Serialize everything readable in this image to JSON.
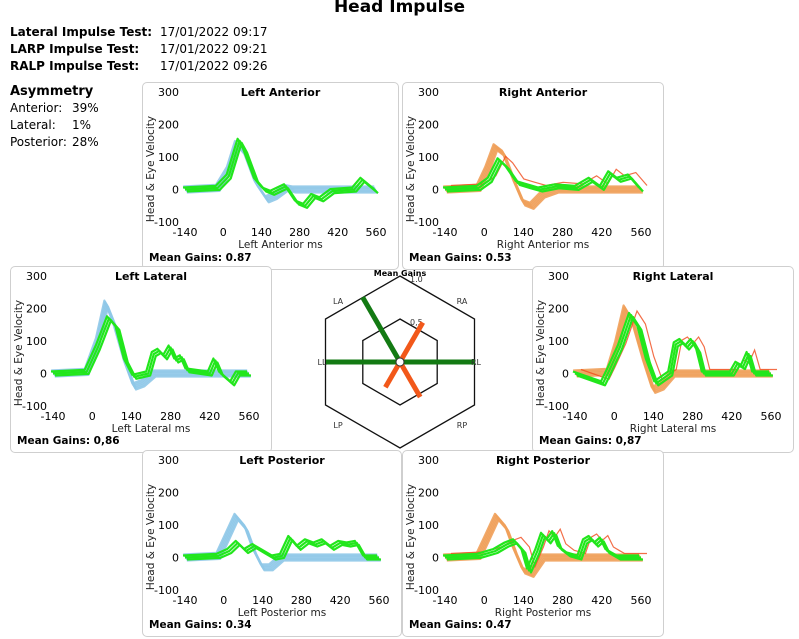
{
  "header": {
    "title": "Head Impulse",
    "tests": [
      {
        "label": "Lateral Impulse Test:",
        "datetime": "17/01/2022 09:17"
      },
      {
        "label": "LARP Impulse Test:",
        "datetime": "17/01/2022 09:21"
      },
      {
        "label": "RALP Impulse Test:",
        "datetime": "17/01/2022 09:26"
      }
    ]
  },
  "asymmetry": {
    "title": "Asymmetry",
    "items": [
      {
        "label": "Anterior:",
        "value": "39%"
      },
      {
        "label": "Lateral:",
        "value": "1%"
      },
      {
        "label": "Posterior:",
        "value": "28%"
      }
    ]
  },
  "colors": {
    "left_head": "#8fc8e8",
    "right_head": "#f0a05a",
    "eye": "#22e61c",
    "eye_saccade_right": "#f04a1a",
    "radar_green": "#137a13",
    "radar_orange": "#f2581a"
  },
  "chart_data": [
    {
      "type": "line",
      "id": "left_anterior",
      "title": "Left Anterior",
      "xlabel": "Left Anterior ms",
      "ylabel": "Head & Eye Velocity",
      "xticks": [
        -140,
        0,
        140,
        280,
        420,
        560
      ],
      "yticks": [
        300,
        200,
        100,
        0,
        -100
      ],
      "xlim": [
        -140,
        560
      ],
      "ylim": [
        -100,
        300
      ],
      "mean_gain_label": "Mean Gains: 0.87",
      "mean_gain": 0.87,
      "head_color": "#8fc8e8",
      "series": [
        {
          "name": "head",
          "x": [
            -140,
            -20,
            20,
            50,
            80,
            120,
            160,
            190,
            230,
            260,
            560
          ],
          "y": [
            0,
            5,
            60,
            140,
            110,
            20,
            -30,
            -20,
            5,
            0,
            0
          ]
        },
        {
          "name": "eye",
          "x": [
            -140,
            -20,
            20,
            60,
            80,
            120,
            150,
            180,
            230,
            270,
            300,
            330,
            360,
            400,
            480,
            510,
            560
          ],
          "y": [
            0,
            5,
            40,
            150,
            120,
            30,
            0,
            -10,
            10,
            -40,
            -50,
            -20,
            -30,
            -5,
            0,
            30,
            -5
          ]
        }
      ]
    },
    {
      "type": "line",
      "id": "right_anterior",
      "title": "Right Anterior",
      "xlabel": "Right Anterior ms",
      "ylabel": "Head & Eye Velocity",
      "xticks": [
        -140,
        0,
        140,
        280,
        420,
        560
      ],
      "yticks": [
        300,
        200,
        100,
        0,
        -100
      ],
      "xlim": [
        -140,
        560
      ],
      "ylim": [
        -100,
        300
      ],
      "mean_gain_label": "Mean Gains: 0.53",
      "mean_gain": 0.53,
      "head_color": "#f0a05a",
      "series": [
        {
          "name": "head",
          "x": [
            -140,
            -20,
            10,
            40,
            70,
            110,
            140,
            170,
            210,
            260,
            560
          ],
          "y": [
            0,
            5,
            60,
            130,
            110,
            20,
            -40,
            -50,
            -15,
            0,
            0
          ]
        },
        {
          "name": "eye",
          "x": [
            -140,
            -20,
            20,
            55,
            80,
            120,
            160,
            200,
            260,
            330,
            380,
            420,
            450,
            480,
            520,
            560
          ],
          "y": [
            0,
            5,
            30,
            90,
            70,
            20,
            10,
            0,
            10,
            5,
            30,
            5,
            50,
            30,
            40,
            0
          ]
        }
      ]
    },
    {
      "type": "line",
      "id": "left_lateral",
      "title": "Left Lateral",
      "xlabel": "Left Lateral ms",
      "ylabel": "Head & Eye Velocity",
      "xticks": [
        -140,
        0,
        140,
        280,
        420,
        560
      ],
      "yticks": [
        300,
        200,
        100,
        0,
        -100
      ],
      "xlim": [
        -140,
        560
      ],
      "ylim": [
        -100,
        300
      ],
      "mean_gain_label": "Mean Gains: 0,86",
      "mean_gain": 0.86,
      "head_color": "#8fc8e8",
      "series": [
        {
          "name": "head",
          "x": [
            -140,
            -20,
            20,
            50,
            80,
            120,
            150,
            180,
            220,
            560
          ],
          "y": [
            0,
            5,
            100,
            215,
            150,
            30,
            -40,
            -30,
            0,
            0
          ]
        },
        {
          "name": "eye",
          "x": [
            -140,
            -20,
            20,
            60,
            90,
            120,
            150,
            200,
            220,
            240,
            260,
            280,
            300,
            320,
            340,
            420,
            440,
            460,
            500,
            520,
            560
          ],
          "y": [
            0,
            5,
            80,
            170,
            140,
            40,
            -10,
            0,
            60,
            70,
            50,
            80,
            40,
            50,
            10,
            0,
            40,
            0,
            -30,
            0,
            0
          ]
        }
      ]
    },
    {
      "type": "line",
      "id": "right_lateral",
      "title": "Right Lateral",
      "xlabel": "Right Lateral ms",
      "ylabel": "Head & Eye Velocity",
      "xticks": [
        -140,
        0,
        140,
        280,
        420,
        560
      ],
      "yticks": [
        300,
        200,
        100,
        0,
        -100
      ],
      "xlim": [
        -140,
        560
      ],
      "ylim": [
        -100,
        300
      ],
      "mean_gain_label": "Mean Gains: 0,87",
      "mean_gain": 0.87,
      "head_color": "#f0a05a",
      "series": [
        {
          "name": "head",
          "x": [
            -140,
            -20,
            10,
            40,
            70,
            110,
            140,
            170,
            210,
            560
          ],
          "y": [
            0,
            5,
            90,
            200,
            150,
            30,
            -50,
            -40,
            0,
            0
          ]
        },
        {
          "name": "eye",
          "x": [
            -140,
            -40,
            -20,
            20,
            60,
            90,
            120,
            150,
            200,
            220,
            240,
            260,
            280,
            300,
            320,
            420,
            440,
            460,
            480,
            500,
            560
          ],
          "y": [
            0,
            -30,
            5,
            80,
            180,
            140,
            40,
            -30,
            0,
            90,
            100,
            80,
            100,
            70,
            0,
            0,
            30,
            20,
            60,
            0,
            0
          ]
        }
      ]
    },
    {
      "type": "line",
      "id": "left_posterior",
      "title": "Left Posterior",
      "xlabel": "Left Posterior ms",
      "ylabel": "Head & Eye Velocity",
      "xticks": [
        -140,
        0,
        140,
        280,
        420,
        560
      ],
      "yticks": [
        300,
        200,
        100,
        0,
        -100
      ],
      "xlim": [
        -140,
        560
      ],
      "ylim": [
        -100,
        300
      ],
      "mean_gain_label": "Mean Gains: 0.34",
      "mean_gain": 0.34,
      "head_color": "#8fc8e8",
      "series": [
        {
          "name": "head",
          "x": [
            -140,
            -20,
            10,
            45,
            80,
            110,
            140,
            170,
            210,
            560
          ],
          "y": [
            0,
            5,
            60,
            125,
            90,
            20,
            -30,
            -30,
            0,
            0
          ]
        },
        {
          "name": "eye",
          "x": [
            -140,
            -20,
            20,
            50,
            80,
            110,
            140,
            180,
            210,
            240,
            270,
            300,
            330,
            360,
            390,
            420,
            450,
            480,
            510,
            560
          ],
          "y": [
            0,
            5,
            20,
            45,
            20,
            35,
            20,
            0,
            5,
            60,
            30,
            50,
            40,
            50,
            30,
            45,
            40,
            45,
            0,
            0
          ]
        }
      ]
    },
    {
      "type": "line",
      "id": "right_posterior",
      "title": "Right Posterior",
      "xlabel": "Right Posterior ms",
      "ylabel": "Head & Eye Velocity",
      "xticks": [
        -140,
        0,
        140,
        280,
        420,
        560
      ],
      "yticks": [
        300,
        200,
        100,
        0,
        -100
      ],
      "xlim": [
        -140,
        560
      ],
      "ylim": [
        -100,
        300
      ],
      "mean_gain_label": "Mean Gains: 0.47",
      "mean_gain": 0.47,
      "head_color": "#f0a05a",
      "series": [
        {
          "name": "head",
          "x": [
            -140,
            -20,
            10,
            45,
            80,
            110,
            140,
            170,
            210,
            560
          ],
          "y": [
            0,
            5,
            60,
            125,
            90,
            20,
            -40,
            -50,
            0,
            0
          ]
        },
        {
          "name": "eye",
          "x": [
            -140,
            -20,
            40,
            80,
            110,
            140,
            160,
            190,
            210,
            230,
            250,
            270,
            300,
            340,
            360,
            380,
            400,
            420,
            440,
            460,
            480,
            560
          ],
          "y": [
            0,
            5,
            20,
            40,
            50,
            20,
            -40,
            20,
            70,
            50,
            75,
            30,
            10,
            0,
            50,
            60,
            40,
            55,
            20,
            10,
            0,
            0
          ]
        }
      ]
    },
    {
      "type": "radar",
      "id": "mean_gains",
      "title": "Mean Gains",
      "axes": [
        "LA",
        "RA",
        "RL",
        "RP",
        "LP",
        "LL"
      ],
      "rings": [
        {
          "value": 0.5,
          "label": "0,5"
        },
        {
          "value": 1.0,
          "label": "1.0"
        }
      ],
      "values": {
        "LA": 0.87,
        "RA": 0.53,
        "RL": 0.87,
        "RP": 0.47,
        "LP": 0.34,
        "LL": 0.86
      },
      "colors": {
        "LA": "#137a13",
        "RA": "#f2581a",
        "RL": "#137a13",
        "RP": "#f2581a",
        "LP": "#f2581a",
        "LL": "#137a13"
      }
    }
  ]
}
